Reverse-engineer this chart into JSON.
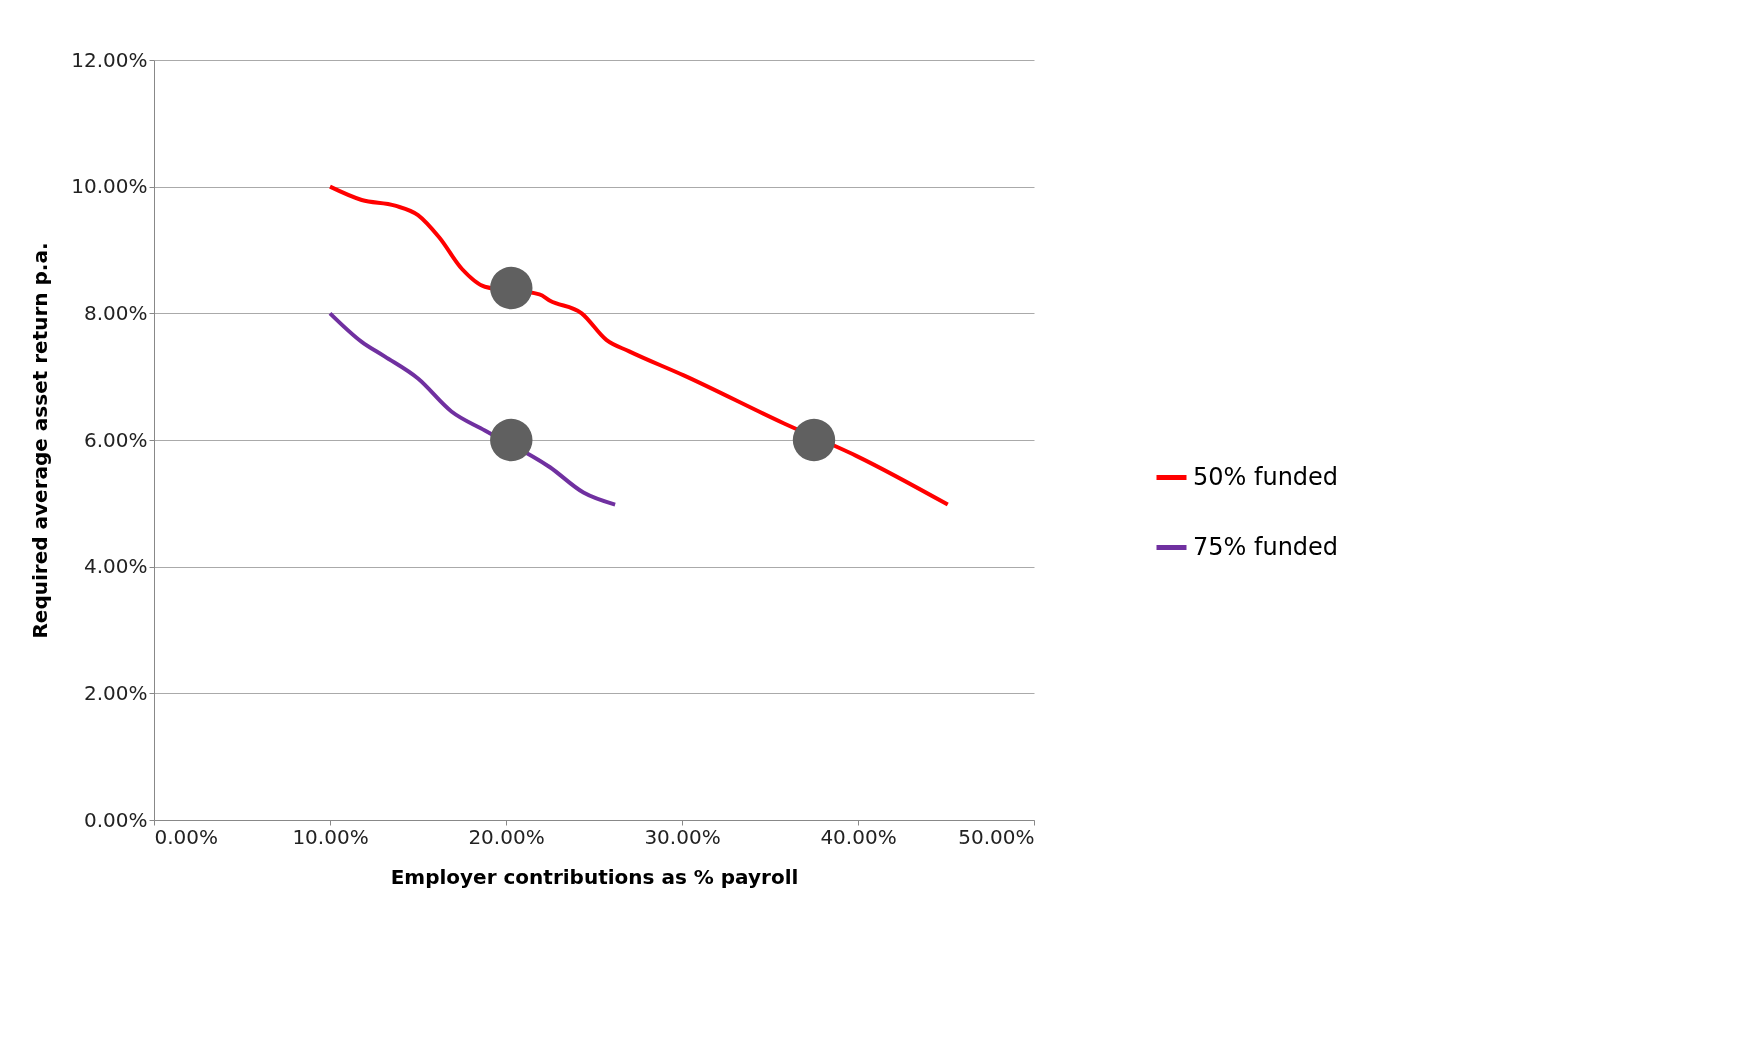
{
  "chart_data": {
    "type": "line",
    "xlabel": "Employer contributions as % payroll",
    "ylabel": "Required average asset return p.a.",
    "xlim": [
      0,
      50
    ],
    "ylim": [
      0,
      12
    ],
    "xticks": [
      {
        "value": 0,
        "label": "0.00%"
      },
      {
        "value": 10,
        "label": "10.00%"
      },
      {
        "value": 20,
        "label": "20.00%"
      },
      {
        "value": 30,
        "label": "30.00%"
      },
      {
        "value": 40,
        "label": "40.00%"
      },
      {
        "value": 50,
        "label": "50.00%"
      }
    ],
    "yticks": [
      {
        "value": 0,
        "label": "0.00%"
      },
      {
        "value": 2,
        "label": "2.00%"
      },
      {
        "value": 4,
        "label": "4.00%"
      },
      {
        "value": 6,
        "label": "6.00%"
      },
      {
        "value": 8,
        "label": "8.00%"
      },
      {
        "value": 10,
        "label": "10.00%"
      },
      {
        "value": 12,
        "label": "12.00%"
      }
    ],
    "grid": "y",
    "legend": "right",
    "marker": "none",
    "line_style": "solid",
    "series": [
      {
        "name": "50% funded",
        "color": "#ff0000",
        "x": [
          10,
          11.8,
          13.7,
          15,
          16.2,
          17.5,
          18.8,
          21.9,
          22.5,
          24.3,
          25.7,
          27,
          30.1,
          35.8,
          39.9,
          45.1
        ],
        "values": [
          10,
          9.79,
          9.7,
          9.55,
          9.2,
          8.7,
          8.42,
          8.3,
          8.2,
          8.0,
          7.58,
          7.4,
          7.02,
          6.26,
          5.75,
          4.98
        ]
      },
      {
        "name": "75% funded",
        "color": "#7030a0",
        "x": [
          10,
          11.8,
          13.1,
          15,
          16.9,
          18.8,
          22.5,
          24.4,
          26.2
        ],
        "values": [
          8.0,
          7.55,
          7.32,
          6.97,
          6.45,
          6.15,
          5.57,
          5.17,
          4.98
        ]
      },
      {
        "type": "scatter",
        "marker": "circle",
        "color": "#606060",
        "x": [
          20.3,
          20.3,
          37.5
        ],
        "values": [
          8.4,
          6.0,
          6.0
        ]
      }
    ]
  }
}
